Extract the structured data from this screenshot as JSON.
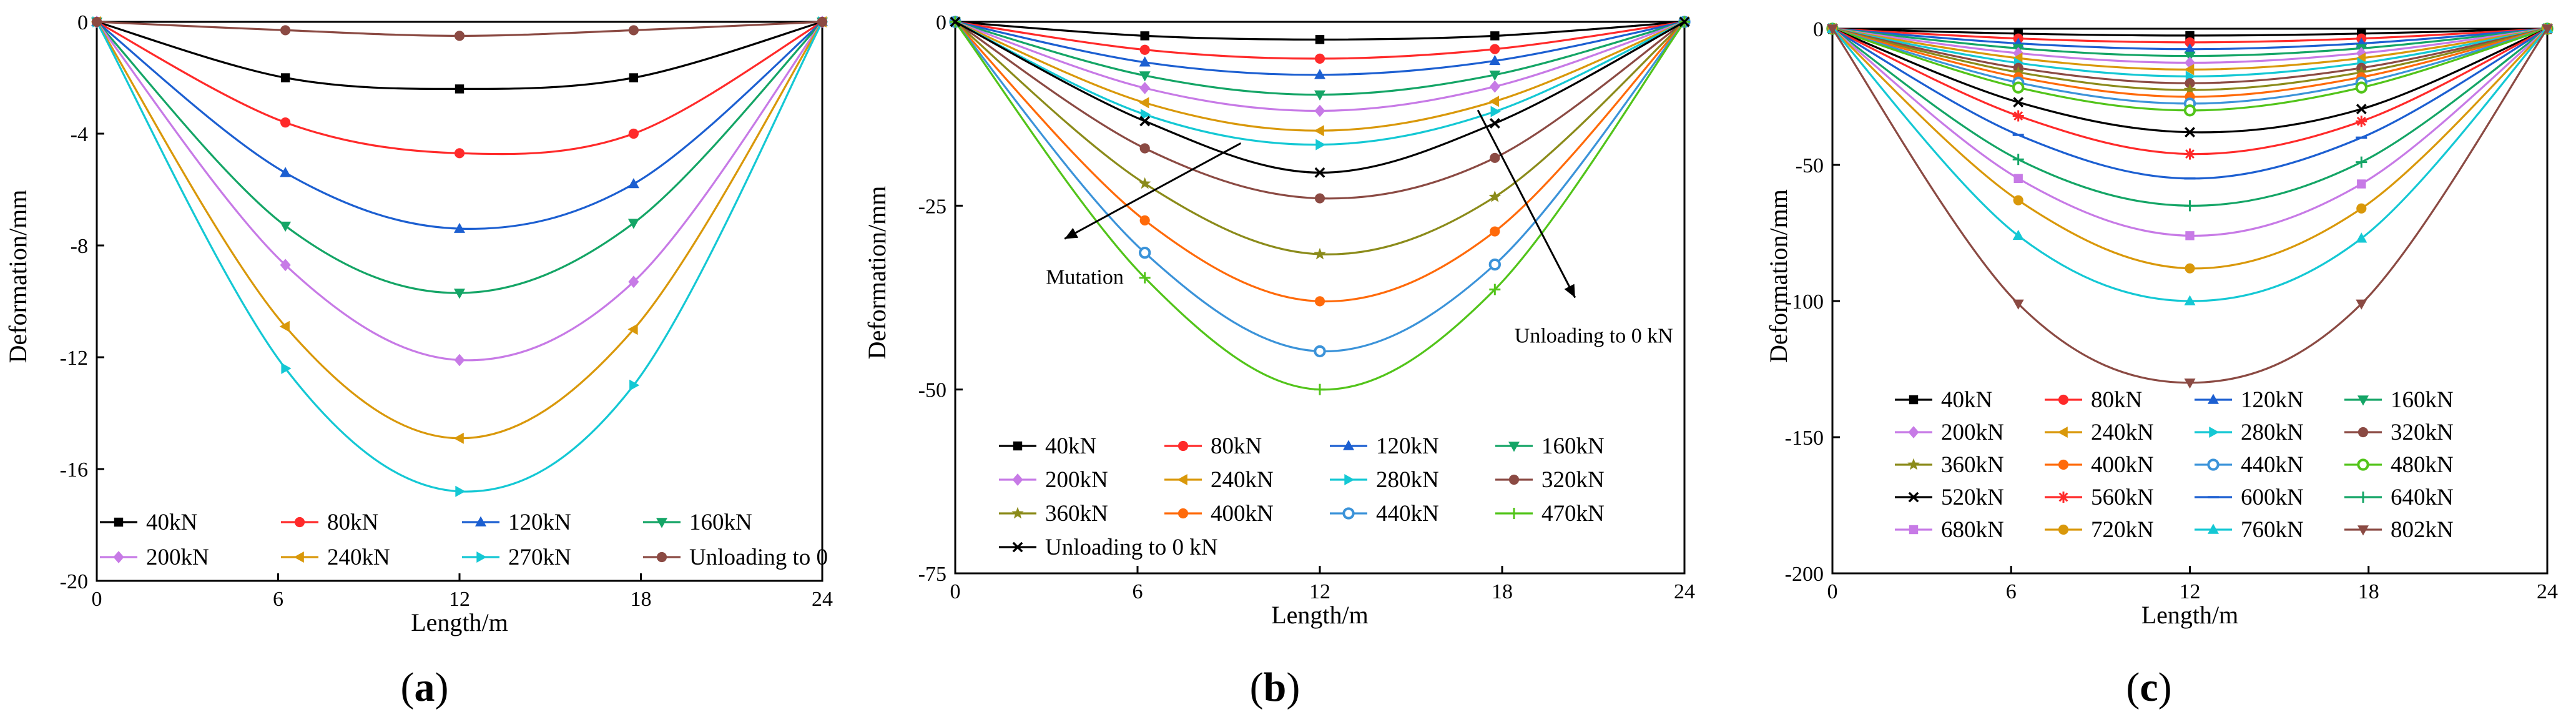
{
  "chart_data": [
    {
      "type": "line",
      "panel": "(a)",
      "panel_letter": "a",
      "xlabel": "Length/m",
      "ylabel": "Deformation/mm",
      "xlim": [
        0,
        24
      ],
      "ylim": [
        -20,
        0
      ],
      "xticks": [
        0,
        6,
        12,
        18,
        24
      ],
      "yticks": [
        0,
        -4,
        -8,
        -12,
        -16,
        -20
      ],
      "x": [
        0,
        6.24,
        12,
        17.76,
        24
      ],
      "grid": false,
      "legend_position": "bottom",
      "legend_columns": 4,
      "series": [
        {
          "name": "40kN",
          "color": "#000000",
          "marker": "square",
          "values": [
            0,
            -2.0,
            -2.4,
            -2.0,
            0
          ]
        },
        {
          "name": "80kN",
          "color": "#ff2a2a",
          "marker": "circle",
          "values": [
            0,
            -3.6,
            -4.7,
            -4.0,
            0
          ]
        },
        {
          "name": "120kN",
          "color": "#1c5fd1",
          "marker": "triangle-up",
          "values": [
            0,
            -5.4,
            -7.4,
            -5.8,
            0
          ]
        },
        {
          "name": "160kN",
          "color": "#14a566",
          "marker": "triangle-down",
          "values": [
            0,
            -7.3,
            -9.7,
            -7.2,
            0
          ]
        },
        {
          "name": "200kN",
          "color": "#c77ae6",
          "marker": "diamond",
          "values": [
            0,
            -8.7,
            -12.1,
            -9.3,
            0
          ]
        },
        {
          "name": "240kN",
          "color": "#d9980a",
          "marker": "triangle-left",
          "values": [
            0,
            -10.9,
            -14.9,
            -11.0,
            0
          ]
        },
        {
          "name": "270kN",
          "color": "#14c8d4",
          "marker": "triangle-right",
          "values": [
            0,
            -12.4,
            -16.8,
            -13.0,
            0
          ]
        },
        {
          "name": "Unloading to 0",
          "color": "#8b4a43",
          "marker": "circle",
          "values": [
            0,
            -0.3,
            -0.5,
            -0.3,
            0
          ]
        }
      ]
    },
    {
      "type": "line",
      "panel": "(b)",
      "panel_letter": "b",
      "xlabel": "Length/m",
      "ylabel": "Deformation/mm",
      "xlim": [
        0,
        24
      ],
      "ylim": [
        -75,
        0
      ],
      "xticks": [
        0,
        6,
        12,
        18,
        24
      ],
      "yticks": [
        0,
        -25,
        -50,
        -75
      ],
      "x": [
        0,
        6.24,
        12,
        17.76,
        24
      ],
      "grid": false,
      "legend_position": "bottom",
      "legend_columns": 4,
      "annotations": [
        {
          "text": "Mutation",
          "from": [
            9.4,
            -16.5
          ],
          "to": [
            3.6,
            -29.5
          ]
        },
        {
          "text": "Unloading to 0 kN",
          "from": [
            17.2,
            -12.0
          ],
          "to": [
            20.4,
            -37.5
          ]
        }
      ],
      "series": [
        {
          "name": "40kN",
          "color": "#000000",
          "marker": "square",
          "values": [
            0,
            -1.9,
            -2.4,
            -1.9,
            0
          ]
        },
        {
          "name": "80kN",
          "color": "#ff2a2a",
          "marker": "circle",
          "values": [
            0,
            -3.8,
            -5.0,
            -3.7,
            0
          ]
        },
        {
          "name": "120kN",
          "color": "#1c5fd1",
          "marker": "triangle-up",
          "values": [
            0,
            -5.5,
            -7.2,
            -5.3,
            0
          ]
        },
        {
          "name": "160kN",
          "color": "#14a566",
          "marker": "triangle-down",
          "values": [
            0,
            -7.3,
            -9.9,
            -7.2,
            0
          ]
        },
        {
          "name": "200kN",
          "color": "#c77ae6",
          "marker": "diamond",
          "values": [
            0,
            -9.0,
            -12.1,
            -8.8,
            0
          ]
        },
        {
          "name": "240kN",
          "color": "#d9980a",
          "marker": "triangle-left",
          "values": [
            0,
            -11.0,
            -14.8,
            -10.8,
            0
          ]
        },
        {
          "name": "280kN",
          "color": "#14c8d4",
          "marker": "triangle-right",
          "values": [
            0,
            -12.6,
            -16.7,
            -12.2,
            0
          ]
        },
        {
          "name": "320kN",
          "color": "#8b4a43",
          "marker": "circle",
          "values": [
            0,
            -17.2,
            -24.0,
            -18.5,
            0
          ]
        },
        {
          "name": "360kN",
          "color": "#8b8b1a",
          "marker": "star",
          "values": [
            0,
            -22.0,
            -31.6,
            -23.8,
            0
          ]
        },
        {
          "name": "400kN",
          "color": "#ff6a0a",
          "marker": "circle",
          "values": [
            0,
            -27.0,
            -38.0,
            -28.5,
            0
          ]
        },
        {
          "name": "440kN",
          "color": "#3b93d9",
          "marker": "circle-half",
          "values": [
            0,
            -31.4,
            -44.8,
            -33.0,
            0
          ]
        },
        {
          "name": "470kN",
          "color": "#52c41a",
          "marker": "plus",
          "values": [
            0,
            -34.8,
            -50.0,
            -36.4,
            0
          ]
        },
        {
          "name": "Unloading to 0 kN",
          "color": "#000000",
          "marker": "cross",
          "values": [
            0,
            -13.5,
            -20.5,
            -13.8,
            0
          ]
        }
      ]
    },
    {
      "type": "line",
      "panel": "(c)",
      "panel_letter": "c",
      "xlabel": "Length/m",
      "ylabel": "Deformation/mm",
      "xlim": [
        0,
        24
      ],
      "ylim": [
        -200,
        0
      ],
      "xticks": [
        0,
        6,
        12,
        18,
        24
      ],
      "yticks": [
        0,
        -50,
        -100,
        -150,
        -200
      ],
      "x": [
        0,
        6.24,
        12,
        17.76,
        24
      ],
      "grid": false,
      "legend_position": "bottom",
      "legend_columns": 4,
      "series": [
        {
          "name": "40kN",
          "color": "#000000",
          "marker": "square",
          "values": [
            0,
            -1.8,
            -2.5,
            -1.8,
            0
          ]
        },
        {
          "name": "80kN",
          "color": "#ff2a2a",
          "marker": "circle",
          "values": [
            0,
            -3.6,
            -5.0,
            -3.6,
            0
          ]
        },
        {
          "name": "120kN",
          "color": "#1c5fd1",
          "marker": "triangle-up",
          "values": [
            0,
            -5.4,
            -7.5,
            -5.4,
            0
          ]
        },
        {
          "name": "160kN",
          "color": "#14a566",
          "marker": "triangle-down",
          "values": [
            0,
            -7.2,
            -10.0,
            -7.2,
            0
          ]
        },
        {
          "name": "200kN",
          "color": "#c77ae6",
          "marker": "diamond",
          "values": [
            0,
            -9.0,
            -12.5,
            -9.0,
            0
          ]
        },
        {
          "name": "240kN",
          "color": "#d9980a",
          "marker": "triangle-left",
          "values": [
            0,
            -10.8,
            -15.0,
            -10.8,
            0
          ]
        },
        {
          "name": "280kN",
          "color": "#14c8d4",
          "marker": "triangle-right",
          "values": [
            0,
            -12.6,
            -17.5,
            -12.6,
            0
          ]
        },
        {
          "name": "320kN",
          "color": "#8b4a43",
          "marker": "circle",
          "values": [
            0,
            -14.4,
            -20.0,
            -14.4,
            0
          ]
        },
        {
          "name": "360kN",
          "color": "#8b8b1a",
          "marker": "star",
          "values": [
            0,
            -16.0,
            -22.5,
            -16.0,
            0
          ]
        },
        {
          "name": "400kN",
          "color": "#ff6a0a",
          "marker": "circle",
          "values": [
            0,
            -17.8,
            -25.0,
            -17.8,
            0
          ]
        },
        {
          "name": "440kN",
          "color": "#3b93d9",
          "marker": "circle-half",
          "values": [
            0,
            -19.8,
            -27.5,
            -19.8,
            0
          ]
        },
        {
          "name": "480kN",
          "color": "#52c41a",
          "marker": "circle-half",
          "values": [
            0,
            -21.6,
            -30.0,
            -21.6,
            0
          ]
        },
        {
          "name": "520kN",
          "color": "#000000",
          "marker": "cross",
          "values": [
            0,
            -27.0,
            -38.0,
            -29.5,
            0
          ]
        },
        {
          "name": "560kN",
          "color": "#ff2a2a",
          "marker": "asterisk",
          "values": [
            0,
            -32.0,
            -46.0,
            -34.0,
            0
          ]
        },
        {
          "name": "600kN",
          "color": "#1c5fd1",
          "marker": "dash",
          "values": [
            0,
            -39.0,
            -55.0,
            -40.0,
            0
          ]
        },
        {
          "name": "640kN",
          "color": "#14a566",
          "marker": "plus",
          "values": [
            0,
            -48.0,
            -65.0,
            -49.0,
            0
          ]
        },
        {
          "name": "680kN",
          "color": "#c77ae6",
          "marker": "square",
          "values": [
            0,
            -55.0,
            -76.0,
            -57.0,
            0
          ]
        },
        {
          "name": "720kN",
          "color": "#d9980a",
          "marker": "circle",
          "values": [
            0,
            -63.0,
            -88.0,
            -66.0,
            0
          ]
        },
        {
          "name": "760kN",
          "color": "#14c8d4",
          "marker": "triangle-up",
          "values": [
            0,
            -76.0,
            -100.0,
            -77.0,
            0
          ]
        },
        {
          "name": "802kN",
          "color": "#8b4a43",
          "marker": "triangle-down",
          "values": [
            0,
            -101.0,
            -130.0,
            -101.0,
            0
          ]
        }
      ]
    }
  ]
}
